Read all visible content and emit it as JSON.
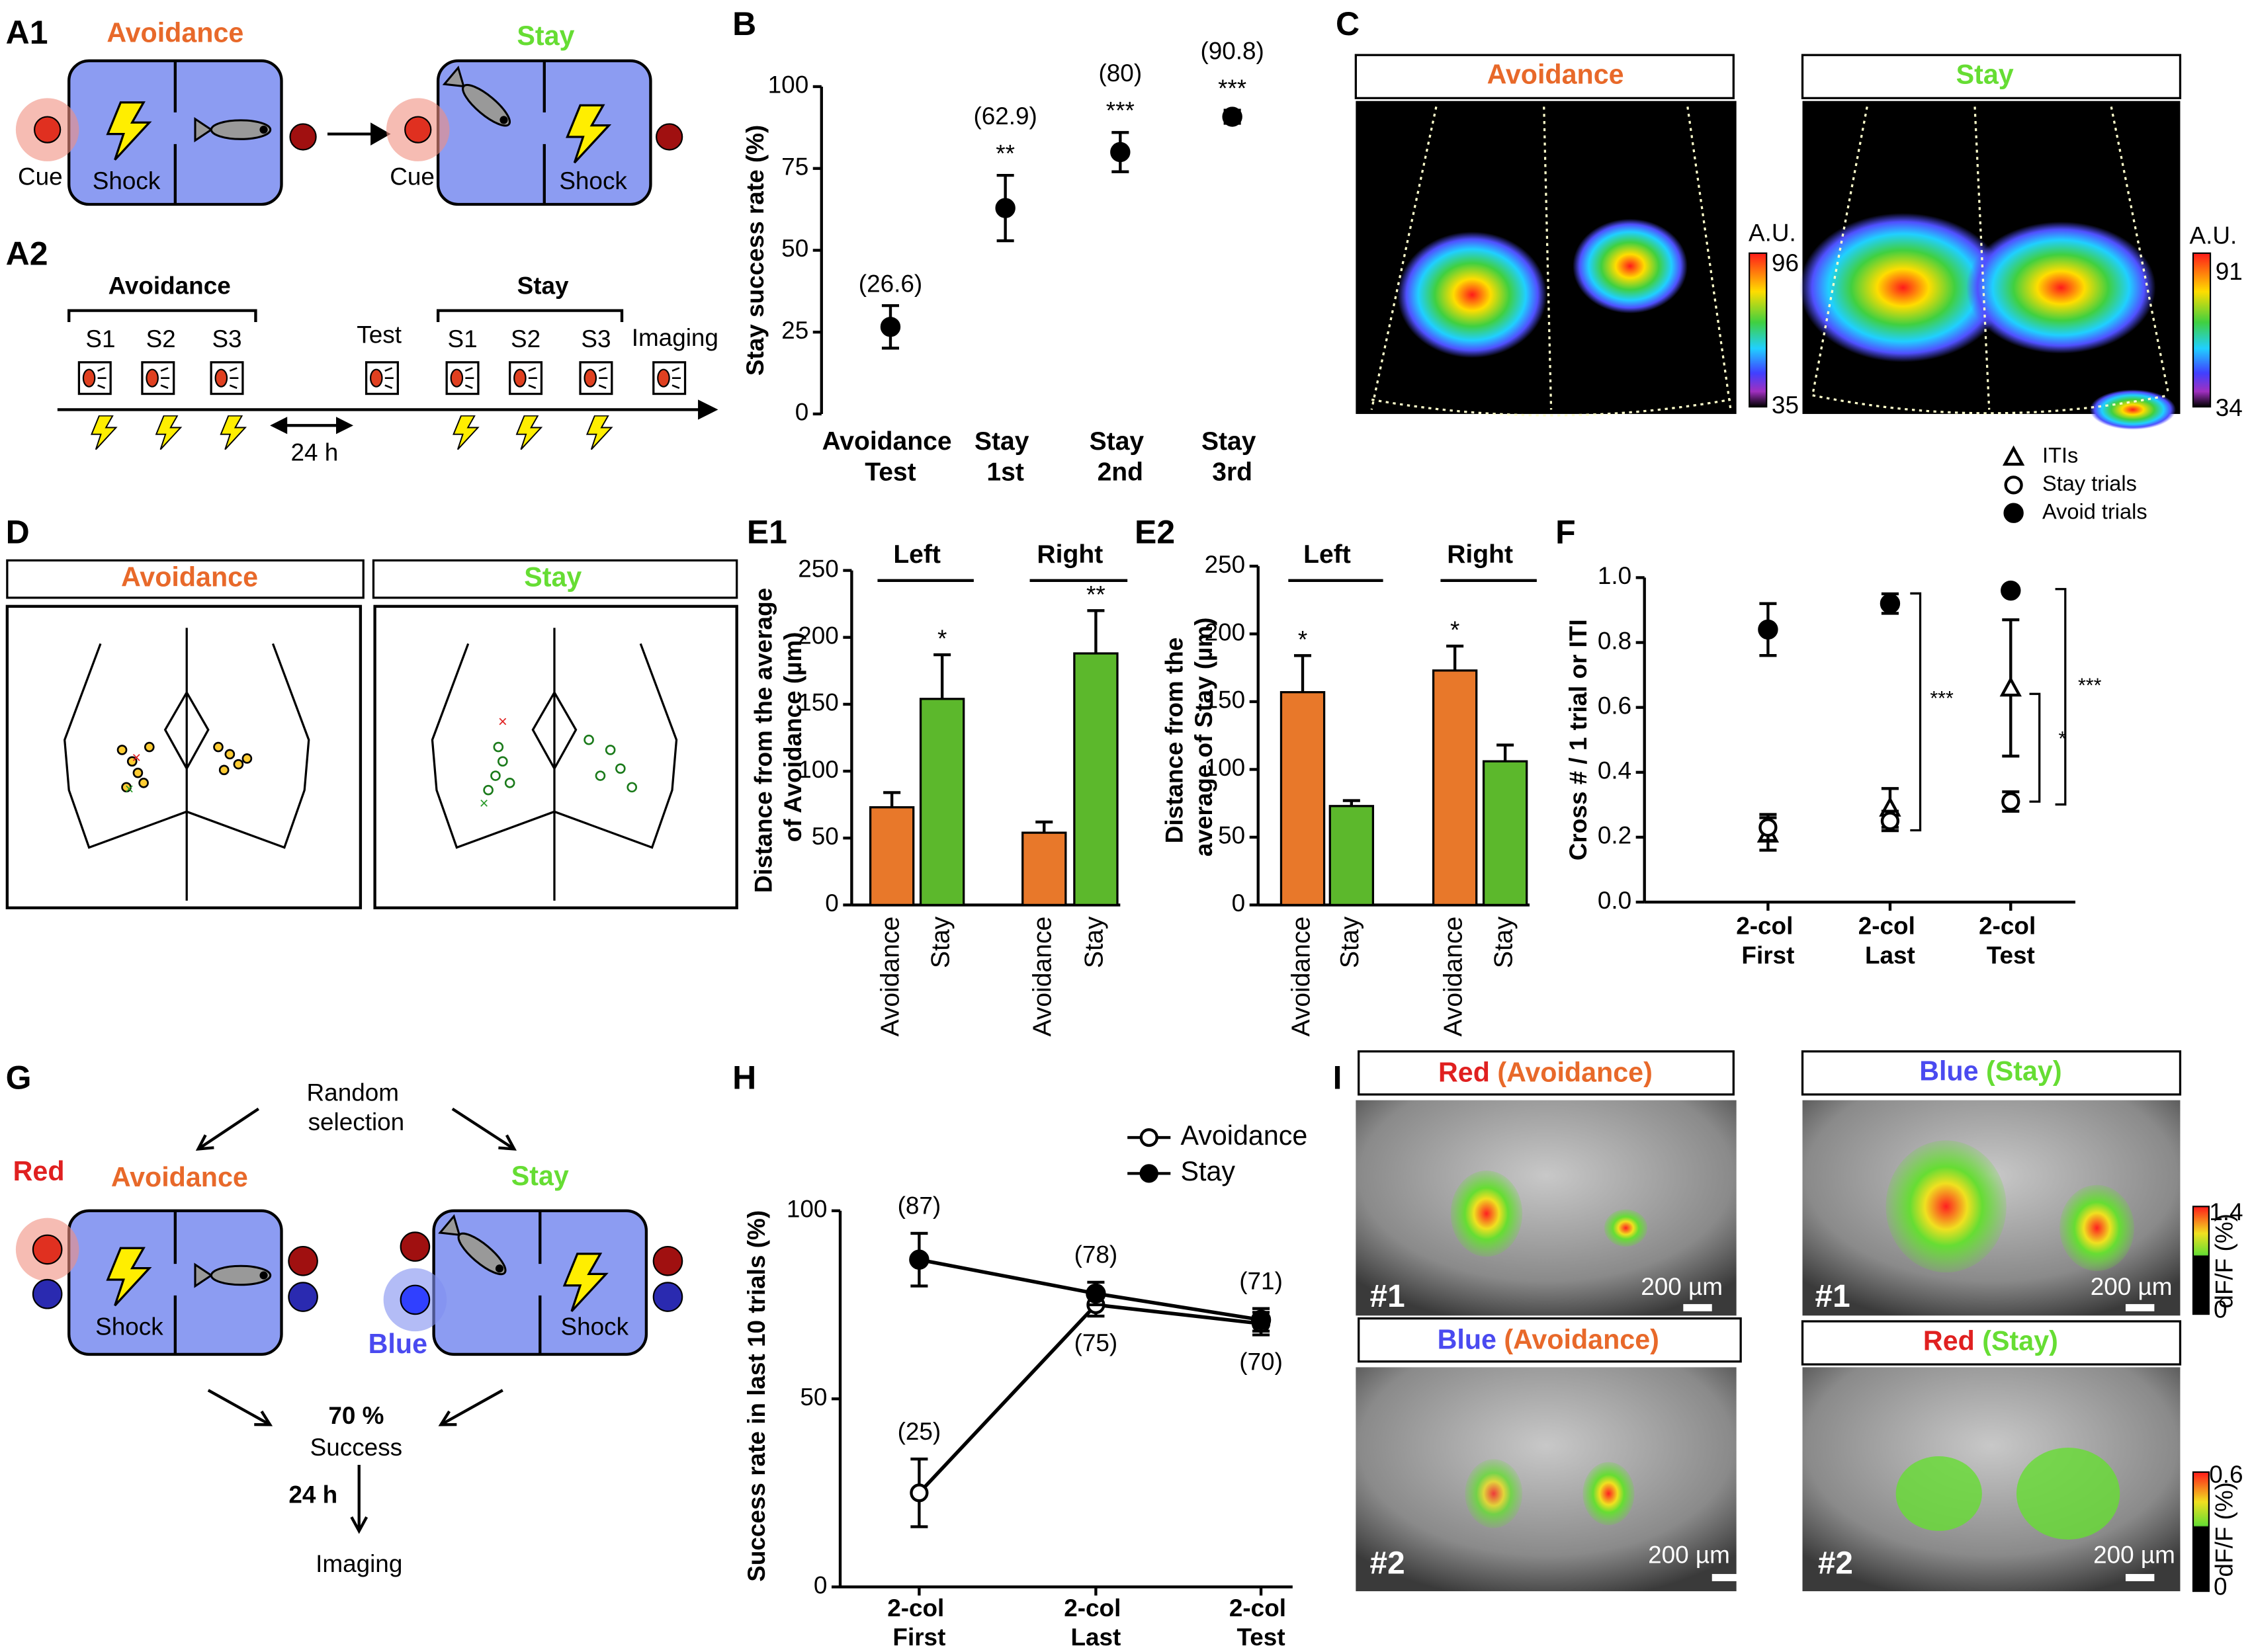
{
  "panel_labels": {
    "a1": "A1",
    "a2": "A2",
    "b": "B",
    "c": "C",
    "d": "D",
    "e1": "E1",
    "e2": "E2",
    "f": "F",
    "g": "G",
    "h": "H",
    "i": "I"
  },
  "a1": {
    "avoidance": "Avoidance",
    "stay": "Stay",
    "cue": "Cue",
    "shock": "Shock"
  },
  "a2": {
    "avoidance": "Avoidance",
    "stay": "Stay",
    "sessions": [
      "S1",
      "S2",
      "S3"
    ],
    "test": "Test",
    "imaging": "Imaging",
    "interval": "24 h"
  },
  "c": {
    "panels": [
      {
        "title": "Avoidance",
        "unit": "A.U.",
        "max": 96,
        "min": 35
      },
      {
        "title": "Stay",
        "unit": "A.U.",
        "max": 91,
        "min": 34
      }
    ]
  },
  "d": {
    "titles": [
      "Avoidance",
      "Stay"
    ]
  },
  "g": {
    "random": "Random selection",
    "red": "Red",
    "blue": "Blue",
    "avoidance": "Avoidance",
    "stay": "Stay",
    "shock": "Shock",
    "success_rate": "70 %",
    "success": "Success",
    "interval": "24 h",
    "imaging": "Imaging"
  },
  "i": {
    "panels": [
      {
        "light": "Red",
        "light_color": "#e02020",
        "condition": "(Avoidance)",
        "condition_color": "#e8692a",
        "id": "#1",
        "scale_bar": "200 µm"
      },
      {
        "light": "Blue",
        "light_color": "#4a4af0",
        "condition": "(Stay)",
        "condition_color": "#66dd33",
        "id": "#1",
        "scale_bar": "200 µm"
      },
      {
        "light": "Blue",
        "light_color": "#4a4af0",
        "condition": "(Avoidance)",
        "condition_color": "#e8692a",
        "id": "#2",
        "scale_bar": "200 µm"
      },
      {
        "light": "Red",
        "light_color": "#e02020",
        "condition": "(Stay)",
        "condition_color": "#66dd33",
        "id": "#2",
        "scale_bar": "200 µm"
      }
    ],
    "colorbars": [
      {
        "max": 1.4,
        "min": 0,
        "unit": "dF/F (%)"
      },
      {
        "max": 0.6,
        "min": 0,
        "unit": "dF/F (%)"
      }
    ]
  },
  "chart_data": [
    {
      "type": "dot",
      "categories": [
        "Avoidance Test",
        "Stay 1st",
        "Stay 2nd",
        "Stay 3rd"
      ],
      "y_label": "Stay success rate (%)",
      "color": "#000000",
      "values": [
        26.6,
        62.9,
        80,
        90.8
      ],
      "errors": [
        6.5,
        10,
        6,
        2
      ],
      "value_labels": [
        "(26.6)",
        "(62.9)",
        "(80)",
        "(90.8)"
      ],
      "annotations": [
        null,
        "**",
        "***",
        "***"
      ],
      "ylim": [
        0,
        100
      ],
      "yticks": [
        0,
        25,
        50,
        75,
        100
      ]
    },
    {
      "type": "bar",
      "categories": [
        "Left",
        "Right"
      ],
      "y_label": "Distance from the average of Avoidance (µm)",
      "series": [
        {
          "name": "Avoidance",
          "color": "#e8782a",
          "values": [
            73,
            54
          ],
          "errors": [
            11,
            8
          ]
        },
        {
          "name": "Stay",
          "color": "#5cb82c",
          "values": [
            154,
            188
          ],
          "errors": [
            33,
            32
          ],
          "annotations": [
            "*",
            "**"
          ]
        }
      ],
      "ylim": [
        0,
        250
      ],
      "yticks": [
        0,
        50,
        100,
        150,
        200,
        250
      ]
    },
    {
      "type": "bar",
      "categories": [
        "Left",
        "Right"
      ],
      "y_label": "Distance from the average of Stay (µm)",
      "series": [
        {
          "name": "Avoidance",
          "color": "#e8782a",
          "values": [
            157,
            173
          ],
          "errors": [
            27,
            18
          ],
          "annotations": [
            "*",
            "*"
          ]
        },
        {
          "name": "Stay",
          "color": "#5cb82c",
          "values": [
            73,
            106
          ],
          "errors": [
            4,
            12
          ]
        }
      ],
      "ylim": [
        0,
        250
      ],
      "yticks": [
        0,
        50,
        100,
        150,
        200,
        250
      ]
    },
    {
      "type": "dot",
      "categories": [
        "2-col First",
        "2-col Last",
        "2-col Test"
      ],
      "y_label": "Cross # / 1 trial or ITI",
      "color": "#000000",
      "series": [
        {
          "name": "ITIs",
          "marker": "triangle",
          "values": [
            0.21,
            0.29,
            0.66
          ],
          "errors": [
            0.05,
            0.06,
            0.21
          ]
        },
        {
          "name": "Stay trials",
          "marker": "open-circle",
          "values": [
            0.23,
            0.25,
            0.31
          ],
          "errors": [
            0.04,
            0.03,
            0.03
          ]
        },
        {
          "name": "Avoid trials",
          "marker": "circle",
          "values": [
            0.84,
            0.92,
            0.96
          ],
          "errors": [
            0.08,
            0.03,
            0
          ]
        }
      ],
      "annotations": [
        "***",
        "***",
        "*"
      ],
      "ylim": [
        0,
        1
      ],
      "yticks": [
        {
          "value": 0,
          "label": "0.0"
        },
        0.2,
        0.4,
        0.6,
        0.8,
        {
          "value": 1,
          "label": "1.0"
        }
      ]
    },
    {
      "type": "line",
      "categories": [
        "2-col First",
        "2-col Last",
        "2-col Test"
      ],
      "y_label": "Success rate in last 10 trials (%)",
      "color": "#000000",
      "legend": "top-right",
      "series": [
        {
          "name": "Avoidance",
          "marker": "open-circle",
          "values": [
            25,
            75,
            70
          ],
          "errors": [
            9,
            3,
            3
          ],
          "value_labels": [
            "(25)",
            "(75)",
            "(70)"
          ]
        },
        {
          "name": "Stay",
          "marker": "circle",
          "values": [
            87,
            78,
            71
          ],
          "errors": [
            7,
            3,
            3
          ],
          "value_labels": [
            "(87)",
            "(78)",
            "(71)"
          ]
        }
      ],
      "ylim": [
        0,
        100
      ],
      "yticks": [
        0,
        50,
        100
      ]
    }
  ]
}
